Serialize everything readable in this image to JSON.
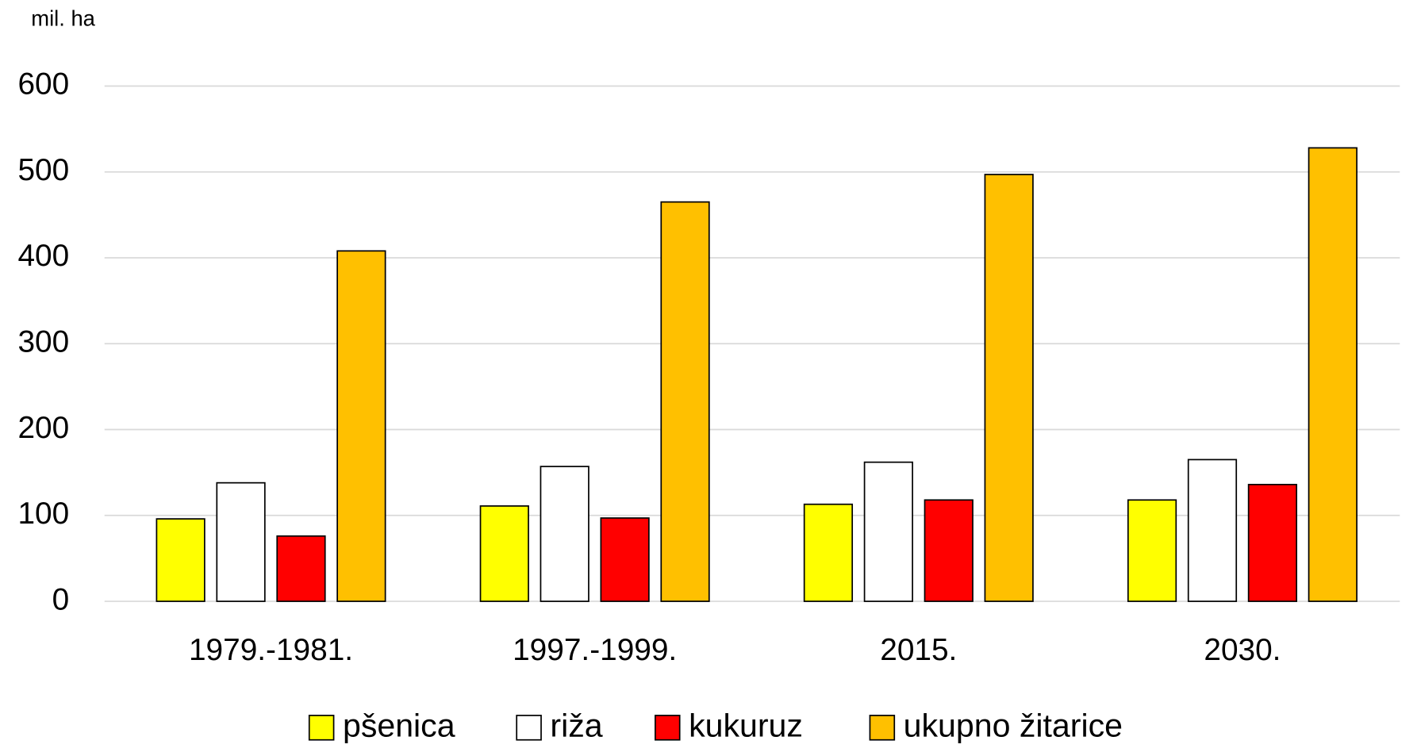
{
  "chart_data": {
    "type": "bar",
    "y_label": "mil. ha",
    "categories": [
      "1979.-1981.",
      "1997.-1999.",
      "2015.",
      "2030."
    ],
    "series": [
      {
        "name": "pšenica",
        "color": "#ffff00",
        "values": [
          96,
          111,
          113,
          118
        ]
      },
      {
        "name": "riža",
        "color": "#ffffff",
        "values": [
          138,
          157,
          162,
          165
        ]
      },
      {
        "name": "kukuruz",
        "color": "#ff0000",
        "values": [
          76,
          97,
          118,
          136
        ]
      },
      {
        "name": "ukupno žitarice",
        "color": "#ffc000",
        "values": [
          408,
          465,
          497,
          528
        ]
      }
    ],
    "ylim": [
      0,
      600
    ],
    "yticks": [
      0,
      100,
      200,
      300,
      400,
      500,
      600
    ],
    "grid": true,
    "legend": "bottom"
  }
}
